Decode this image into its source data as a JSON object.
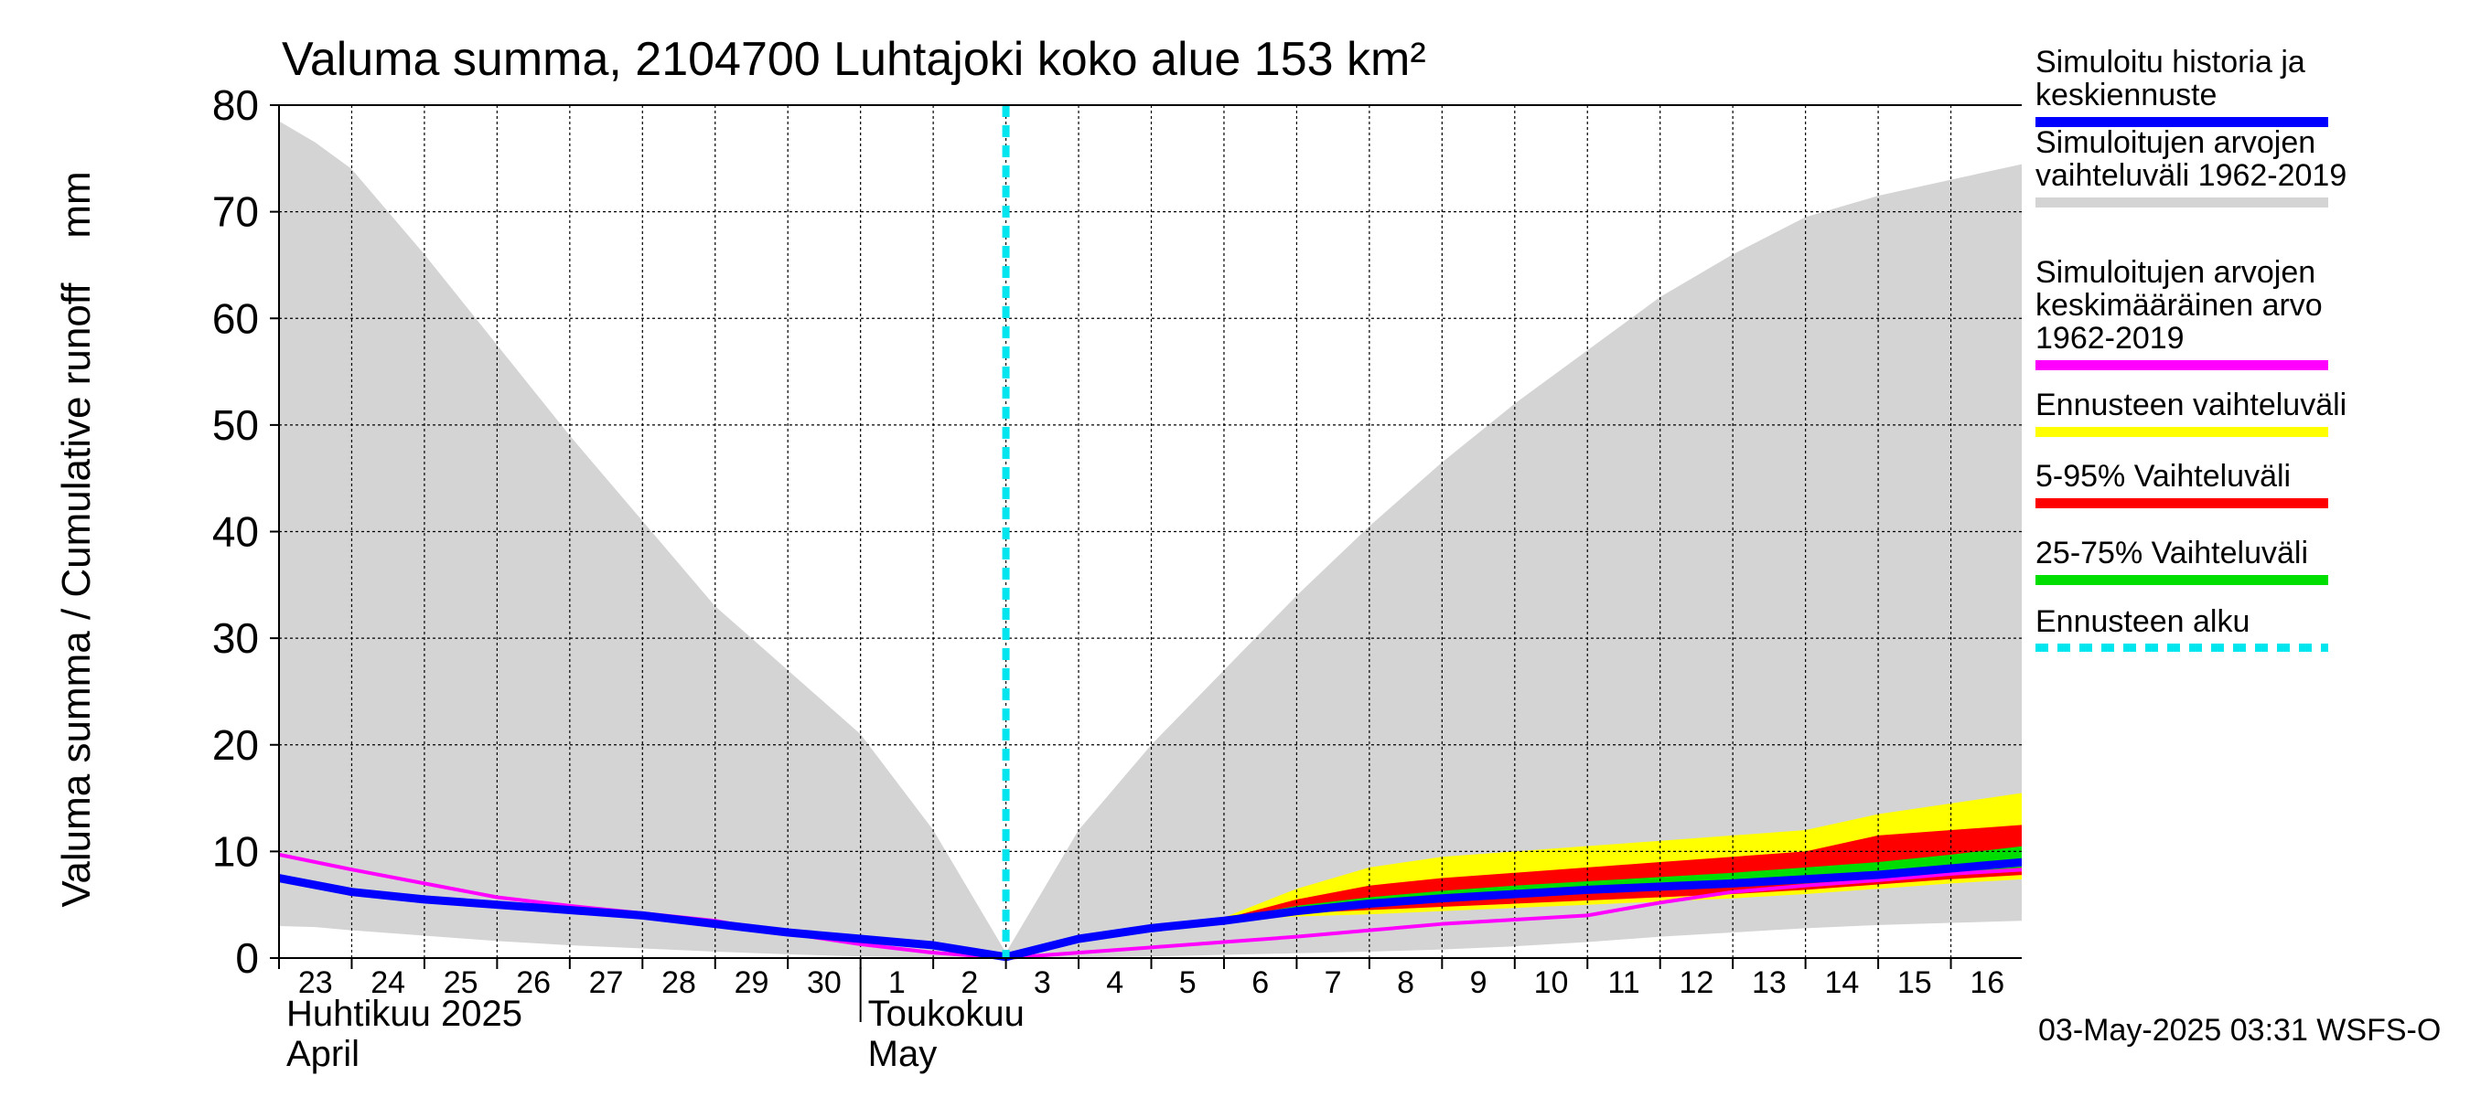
{
  "chart_data": {
    "type": "area",
    "title": "Valuma summa, 2104700 Luhtajoki koko alue 153 km²",
    "ylabel": "Valuma summa / Cumulative runoff    mm",
    "ylim": [
      0,
      80
    ],
    "yticks": [
      0,
      10,
      20,
      30,
      40,
      50,
      60,
      70,
      80
    ],
    "x_day_index_range": [
      0,
      24
    ],
    "x_ticks": [
      "23",
      "24",
      "25",
      "26",
      "27",
      "28",
      "29",
      "30",
      "1",
      "2",
      "3",
      "4",
      "5",
      "6",
      "7",
      "8",
      "9",
      "10",
      "11",
      "12",
      "13",
      "14",
      "15",
      "16"
    ],
    "month_labels": [
      {
        "fi": "Huhtikuu  2025",
        "en": "April",
        "start_day_index": 0
      },
      {
        "fi": "Toukokuu",
        "en": "May",
        "start_day_index": 8
      }
    ],
    "forecast_start_day_index": 10,
    "grid": true,
    "series": [
      {
        "name": "Simuloitujen arvojen vaihteluväli 1962-2019",
        "kind": "band",
        "color": "#d4d4d4",
        "x": [
          0,
          0.5,
          1,
          2,
          3,
          4,
          5,
          6,
          7,
          8,
          9,
          10,
          11,
          12,
          13,
          14,
          15,
          16,
          17,
          18,
          19,
          20,
          21,
          22,
          23,
          24
        ],
        "upper": [
          78.5,
          76.5,
          74,
          66,
          57.5,
          49,
          41,
          33,
          27,
          21,
          12,
          0.5,
          12,
          20,
          27,
          34,
          40.5,
          46.5,
          52,
          57,
          62,
          66,
          69.5,
          71.5,
          73,
          74.5
        ],
        "lower": [
          3,
          2.9,
          2.6,
          2.1,
          1.6,
          1.2,
          0.9,
          0.6,
          0.35,
          0.15,
          0.05,
          0,
          0.05,
          0.15,
          0.3,
          0.45,
          0.6,
          0.8,
          1.1,
          1.5,
          2,
          2.4,
          2.8,
          3.1,
          3.3,
          3.5
        ]
      },
      {
        "name": "Ennusteen vaihteluväli",
        "kind": "band",
        "color": "#ffff00",
        "x": [
          13,
          14,
          15,
          16,
          17,
          18,
          19,
          20,
          21,
          22,
          23,
          24
        ],
        "upper": [
          3.8,
          6.5,
          8.5,
          9.5,
          10,
          10.5,
          11,
          11.5,
          12,
          13.5,
          14.5,
          15.5
        ],
        "lower": [
          3.5,
          3.9,
          4.1,
          4.4,
          4.7,
          5,
          5.3,
          5.6,
          6,
          6.5,
          7,
          7.4
        ]
      },
      {
        "name": "5-95% Vaihteluväli",
        "kind": "band",
        "color": "#ff0000",
        "x": [
          13,
          14,
          15,
          16,
          17,
          18,
          19,
          20,
          21,
          22,
          23,
          24
        ],
        "upper": [
          3.7,
          5.5,
          6.8,
          7.5,
          8,
          8.5,
          9,
          9.5,
          10,
          11.5,
          12,
          12.5
        ],
        "lower": [
          3.5,
          4.2,
          4.5,
          4.8,
          5.1,
          5.4,
          5.7,
          6,
          6.4,
          6.9,
          7.4,
          7.8
        ]
      },
      {
        "name": "25-75% Vaihteluväli",
        "kind": "band",
        "color": "#00dd00",
        "x": [
          13,
          14,
          15,
          16,
          17,
          18,
          19,
          20,
          21,
          22,
          23,
          24
        ],
        "upper": [
          3.65,
          4.9,
          5.7,
          6.3,
          6.8,
          7.2,
          7.6,
          8,
          8.5,
          9,
          9.7,
          10.5
        ],
        "lower": [
          3.55,
          4.5,
          5,
          5.4,
          5.8,
          6.1,
          6.4,
          6.7,
          7,
          7.5,
          8,
          8.5
        ]
      },
      {
        "name": "Simuloitujen arvojen keskimääräinen arvo 1962-2019",
        "kind": "line",
        "color": "#ff00ff",
        "x": [
          0,
          1,
          2,
          3,
          4,
          5,
          6,
          7,
          8,
          9,
          10,
          11,
          12,
          13,
          14,
          15,
          16,
          17,
          18,
          19,
          20,
          21,
          22,
          23,
          24
        ],
        "y": [
          9.7,
          8.3,
          7,
          5.7,
          4.9,
          4.2,
          3.5,
          2.3,
          1.3,
          0.5,
          0,
          0.5,
          1,
          1.5,
          2,
          2.6,
          3.2,
          3.6,
          4,
          5.2,
          6.2,
          6.8,
          7.3,
          7.9,
          8.3
        ]
      },
      {
        "name": "Simuloitu historia ja keskiennuste",
        "kind": "line",
        "color": "#0000ff",
        "x": [
          0,
          1,
          2,
          3,
          4,
          5,
          6,
          7,
          8,
          9,
          10,
          11,
          12,
          13,
          14,
          15,
          16,
          17,
          18,
          19,
          20,
          21,
          22,
          23,
          24
        ],
        "y": [
          7.5,
          6.2,
          5.5,
          5,
          4.5,
          4,
          3.2,
          2.4,
          1.8,
          1.2,
          0.1,
          1.8,
          2.8,
          3.5,
          4.4,
          5.1,
          5.6,
          6,
          6.4,
          6.7,
          7,
          7.4,
          7.8,
          8.4,
          9
        ]
      }
    ],
    "legend": [
      {
        "label": "Simuloitu historia ja\nkeskiennuste",
        "color": "#0000ff",
        "style": "solid"
      },
      {
        "label": "Simuloitujen arvojen\nvaihteluväli 1962-2019",
        "color": "#d4d4d4",
        "style": "solid"
      },
      {
        "label": "Simuloitujen arvojen\nkeskimääräinen arvo\n   1962-2019",
        "color": "#ff00ff",
        "style": "solid"
      },
      {
        "label": "Ennusteen vaihteluväli",
        "color": "#ffff00",
        "style": "solid"
      },
      {
        "label": "5-95% Vaihteluväli",
        "color": "#ff0000",
        "style": "solid"
      },
      {
        "label": "25-75% Vaihteluväli",
        "color": "#00dd00",
        "style": "solid"
      },
      {
        "label": "Ennusteen alku",
        "color": "#00e5ee",
        "style": "dashed"
      }
    ],
    "legend_position": "right"
  },
  "footer": {
    "timestamp": "03-May-2025 03:31 WSFS-O"
  }
}
